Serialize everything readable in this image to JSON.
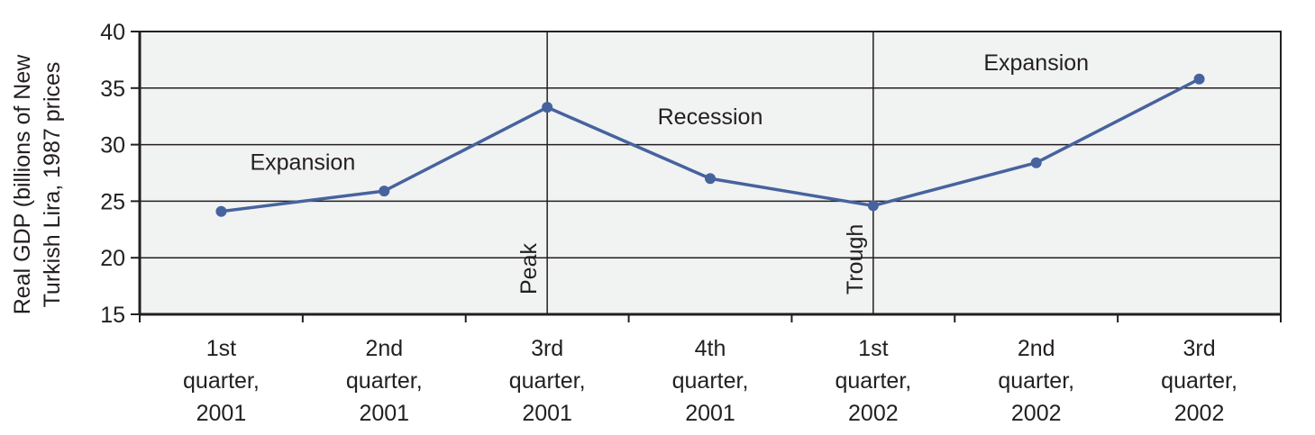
{
  "chart_data": {
    "type": "line",
    "ylabel": [
      "Real GDP (billions of New",
      "Turkish Lira, 1987 prices"
    ],
    "ylim": [
      15,
      40
    ],
    "yticks": [
      15,
      20,
      25,
      30,
      35,
      40
    ],
    "grid": true,
    "categories": [
      [
        "1st",
        "quarter,",
        "2001"
      ],
      [
        "2nd",
        "quarter,",
        "2001"
      ],
      [
        "3rd",
        "quarter,",
        "2001"
      ],
      [
        "4th",
        "quarter,",
        "2001"
      ],
      [
        "1st",
        "quarter,",
        "2002"
      ],
      [
        "2nd",
        "quarter,",
        "2002"
      ],
      [
        "3rd",
        "quarter,",
        "2002"
      ]
    ],
    "values": [
      24.1,
      25.9,
      33.3,
      27.0,
      24.6,
      28.4,
      35.8
    ],
    "series_color": "#46639e",
    "plot_background": "#f1f2f2",
    "markers": [
      {
        "label": "Peak",
        "category_index": 2
      },
      {
        "label": "Trough",
        "category_index": 4
      }
    ],
    "annotations": [
      {
        "text": "Expansion",
        "near_category": 0.5,
        "y": 28.5
      },
      {
        "text": "Recession",
        "near_category": 3,
        "y": 32.5
      },
      {
        "text": "Expansion",
        "near_category": 5,
        "y": 37.3
      }
    ]
  }
}
